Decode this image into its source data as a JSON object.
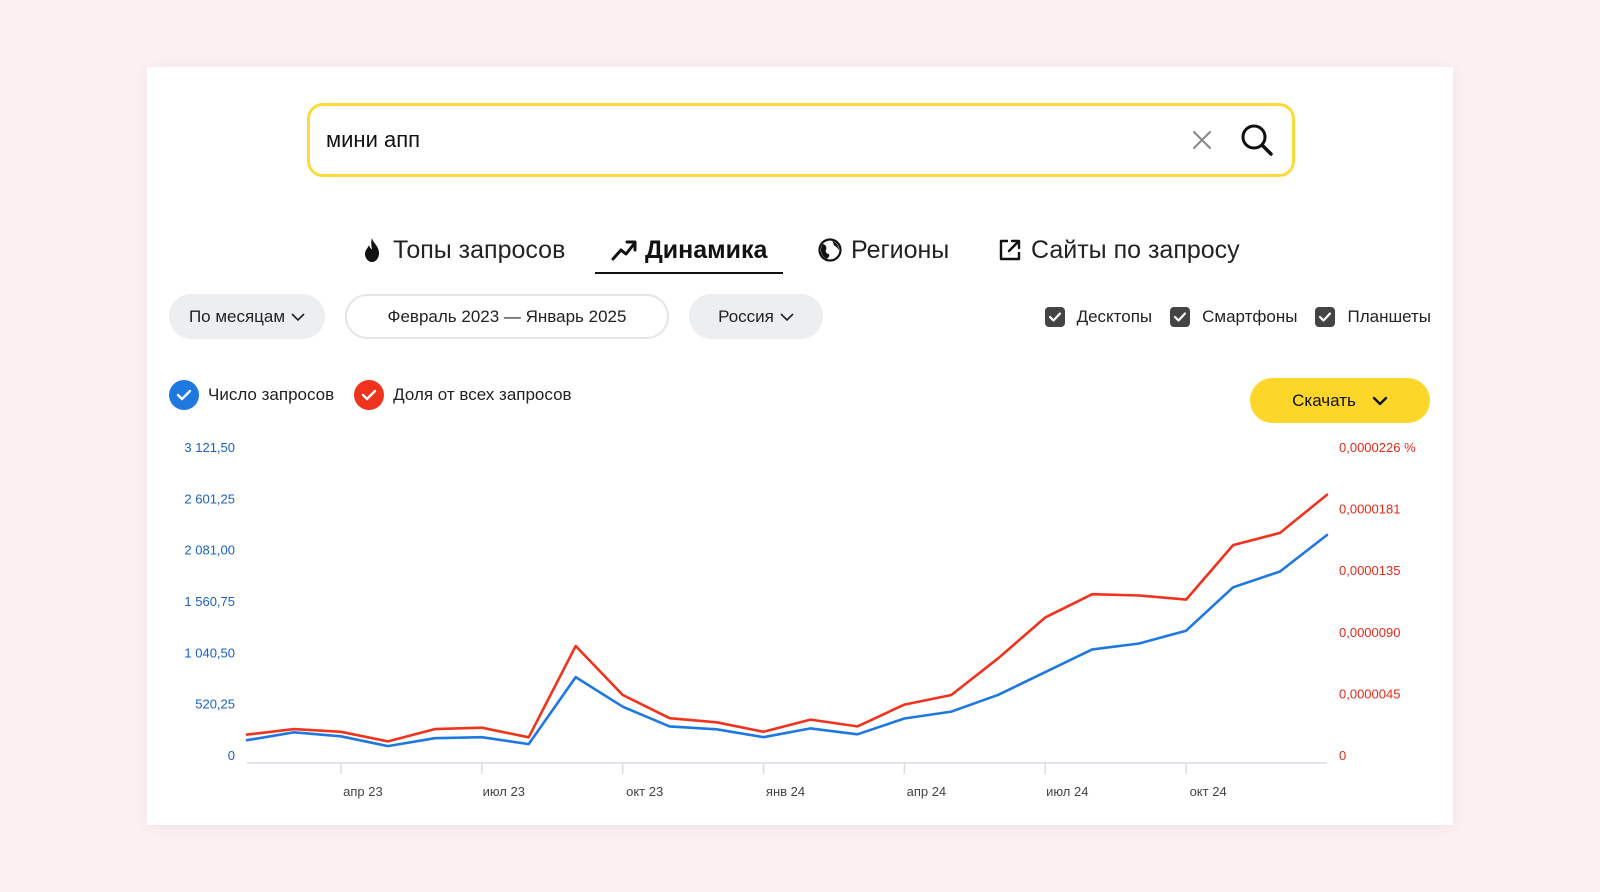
{
  "search": {
    "value": "мини апп",
    "placeholder": ""
  },
  "tabs": [
    {
      "label": "Топы запросов",
      "icon": "fire-icon",
      "active": false
    },
    {
      "label": "Динамика",
      "icon": "trend-up-icon",
      "active": true
    },
    {
      "label": "Регионы",
      "icon": "globe-icon",
      "active": false
    },
    {
      "label": "Сайты по запросу",
      "icon": "external-link-icon",
      "active": false
    }
  ],
  "filters": {
    "period_label": "По месяцам",
    "date_range": "Февраль 2023 — Январь 2025",
    "region_label": "Россия",
    "devices": [
      {
        "label": "Десктопы",
        "checked": true
      },
      {
        "label": "Смартфоны",
        "checked": true
      },
      {
        "label": "Планшеты",
        "checked": true
      }
    ]
  },
  "legend": {
    "queries_label": "Число запросов",
    "share_label": "Доля от всех запросов"
  },
  "download_label": "Скачать",
  "colors": {
    "accent_yellow": "#fcd72a",
    "queries_blue": "#1f78e0",
    "share_red": "#f0331c"
  },
  "chart_data": {
    "type": "line",
    "x": [
      "2023-02",
      "2023-03",
      "2023-04",
      "2023-05",
      "2023-06",
      "2023-07",
      "2023-08",
      "2023-09",
      "2023-10",
      "2023-11",
      "2023-12",
      "2024-01",
      "2024-02",
      "2024-03",
      "2024-04",
      "2024-05",
      "2024-06",
      "2024-07",
      "2024-08",
      "2024-09",
      "2024-10",
      "2024-11",
      "2024-12",
      "2025-01"
    ],
    "x_tick_labels": [
      {
        "x": "2023-04",
        "label": "апр 23"
      },
      {
        "x": "2023-07",
        "label": "июл 23"
      },
      {
        "x": "2023-10",
        "label": "окт 23"
      },
      {
        "x": "2024-01",
        "label": "янв 24"
      },
      {
        "x": "2024-04",
        "label": "апр 24"
      },
      {
        "x": "2024-07",
        "label": "июл 24"
      },
      {
        "x": "2024-10",
        "label": "окт 24"
      }
    ],
    "y_left_ticks": [
      "0",
      "520,25",
      "1 040,50",
      "1 560,75",
      "2 081,00",
      "2 601,25",
      "3 121,50"
    ],
    "y_left_range": [
      0,
      3121.5
    ],
    "y_right_ticks": [
      "0",
      "0,0000045",
      "0,0000090",
      "0,0000135",
      "0,0000181",
      "0,0000226 %"
    ],
    "y_right_range": [
      0,
      2.26e-05
    ],
    "series": [
      {
        "name": "Число запросов",
        "axis": "left",
        "values": [
          150,
          230,
          190,
          90,
          170,
          180,
          110,
          790,
          490,
          290,
          260,
          180,
          270,
          210,
          370,
          440,
          610,
          840,
          1070,
          1130,
          1260,
          1700,
          1860,
          2230
        ]
      },
      {
        "name": "Доля от всех запросов",
        "axis": "right",
        "values": [
          1.5e-06,
          1.9e-06,
          1.7e-06,
          1e-06,
          1.9e-06,
          2e-06,
          1.3e-06,
          8e-06,
          4.4e-06,
          2.7e-06,
          2.4e-06,
          1.7e-06,
          2.6e-06,
          2.1e-06,
          3.7e-06,
          4.4e-06,
          7.1e-06,
          1.01e-05,
          1.18e-05,
          1.17e-05,
          1.14e-05,
          1.54e-05,
          1.63e-05,
          1.91e-05
        ]
      }
    ],
    "grid": false
  }
}
